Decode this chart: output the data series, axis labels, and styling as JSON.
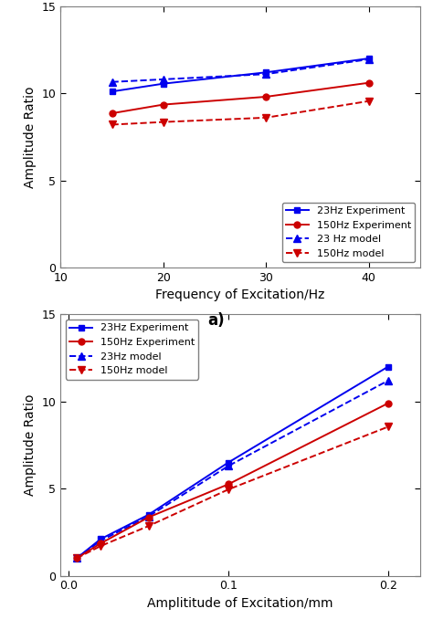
{
  "top": {
    "x": [
      15,
      20,
      30,
      40
    ],
    "blue_exp": [
      10.1,
      10.55,
      11.2,
      12.0
    ],
    "red_exp": [
      8.85,
      9.35,
      9.8,
      10.6
    ],
    "blue_model": [
      10.65,
      10.8,
      11.1,
      11.95
    ],
    "red_model": [
      8.2,
      8.35,
      8.6,
      9.55
    ],
    "xlabel": "Frequency of Excitation/Hz",
    "ylabel": "Amplitude Ratio",
    "xlim": [
      10,
      45
    ],
    "ylim": [
      0,
      15
    ],
    "xticks": [
      10,
      20,
      30,
      40
    ],
    "yticks": [
      0,
      5,
      10,
      15
    ],
    "label_a": "a)"
  },
  "bottom": {
    "x": [
      0.005,
      0.02,
      0.05,
      0.1,
      0.2
    ],
    "blue_exp": [
      1.0,
      2.1,
      3.5,
      6.5,
      12.0
    ],
    "red_exp": [
      1.0,
      1.85,
      3.35,
      5.25,
      9.9
    ],
    "blue_model": [
      1.0,
      2.0,
      3.4,
      6.3,
      11.2
    ],
    "red_model": [
      1.0,
      1.7,
      2.85,
      4.95,
      8.55
    ],
    "xlabel": "Amplititude of Excitation/mm",
    "ylabel": "Amplitude Ratio",
    "xlim": [
      -0.005,
      0.22
    ],
    "ylim": [
      0,
      15
    ],
    "xticks": [
      0.0,
      0.1,
      0.2
    ],
    "yticks": [
      0,
      5,
      10,
      15
    ]
  },
  "blue": "#0000ee",
  "red": "#cc0000",
  "spine_color": "#808080",
  "legend_top": [
    "23Hz Experiment",
    "150Hz Experiment",
    "23 Hz model",
    "150Hz model"
  ],
  "legend_bottom": [
    "23Hz Experiment",
    "150Hz Experiment",
    "23Hz model",
    "150Hz model"
  ],
  "fig_width": 4.74,
  "fig_height": 6.78,
  "dpi": 100
}
